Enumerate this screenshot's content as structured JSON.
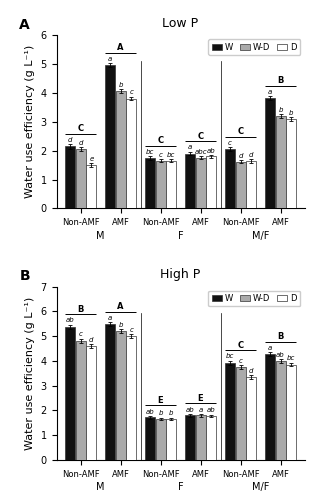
{
  "chart_data": [
    {
      "type": "bar",
      "title": "Low P",
      "panel_label": "A",
      "ylabel": "Water use efficiency (g L⁻¹)",
      "categories": [
        "Non-AMF",
        "AMF",
        "Non-AMF",
        "AMF",
        "Non-AMF",
        "AMF"
      ],
      "category_groups": [
        "M",
        "F",
        "M/F"
      ],
      "category_letters": [
        "C",
        "A",
        "C",
        "C",
        "C",
        "B"
      ],
      "ylim": [
        0,
        6
      ],
      "yticks": [
        0,
        1,
        2,
        3,
        4,
        5,
        6
      ],
      "legend": "upper right",
      "edge_color": "#333333",
      "series": [
        {
          "name": "W",
          "color": "#111111",
          "values": [
            2.15,
            4.95,
            1.75,
            1.9,
            2.05,
            3.82
          ],
          "errors": [
            0.08,
            0.07,
            0.06,
            0.06,
            0.07,
            0.07
          ],
          "letters": [
            "d",
            "a",
            "bc",
            "a",
            "c",
            "a"
          ]
        },
        {
          "name": "W-D",
          "color": "#aaaaaa",
          "values": [
            2.05,
            4.05,
            1.65,
            1.75,
            1.62,
            3.2
          ],
          "errors": [
            0.07,
            0.07,
            0.05,
            0.05,
            0.06,
            0.07
          ],
          "letters": [
            "d",
            "b",
            "c",
            "abc",
            "d",
            "b"
          ]
        },
        {
          "name": "D",
          "color": "#ffffff",
          "values": [
            1.5,
            3.8,
            1.65,
            1.8,
            1.65,
            3.08
          ],
          "errors": [
            0.06,
            0.06,
            0.05,
            0.05,
            0.06,
            0.07
          ],
          "letters": [
            "e",
            "c",
            "bc",
            "ab",
            "d",
            "b"
          ]
        }
      ]
    },
    {
      "type": "bar",
      "title": "High P",
      "panel_label": "B",
      "ylabel": "Water use efficiency (g L⁻¹)",
      "categories": [
        "Non-AMF",
        "AMF",
        "Non-AMF",
        "AMF",
        "Non-AMF",
        "AMF"
      ],
      "category_groups": [
        "M",
        "F",
        "M/F"
      ],
      "category_letters": [
        "B",
        "A",
        "E",
        "E",
        "C",
        "B"
      ],
      "ylim": [
        0,
        7
      ],
      "yticks": [
        0,
        1,
        2,
        3,
        4,
        5,
        6,
        7
      ],
      "legend": "upper right",
      "edge_color": "#333333",
      "series": [
        {
          "name": "W",
          "color": "#111111",
          "values": [
            5.38,
            5.48,
            1.72,
            1.8,
            3.92,
            4.28
          ],
          "errors": [
            0.08,
            0.07,
            0.06,
            0.06,
            0.08,
            0.08
          ],
          "letters": [
            "ab",
            "a",
            "ab",
            "ab",
            "bc",
            "a"
          ]
        },
        {
          "name": "W-D",
          "color": "#aaaaaa",
          "values": [
            4.82,
            5.2,
            1.65,
            1.8,
            3.75,
            4.0
          ],
          "errors": [
            0.08,
            0.07,
            0.05,
            0.05,
            0.08,
            0.07
          ],
          "letters": [
            "c",
            "b",
            "b",
            "a",
            "c",
            "ab"
          ]
        },
        {
          "name": "D",
          "color": "#ffffff",
          "values": [
            4.6,
            5.0,
            1.65,
            1.78,
            3.35,
            3.85
          ],
          "errors": [
            0.07,
            0.07,
            0.05,
            0.05,
            0.07,
            0.07
          ],
          "letters": [
            "d",
            "c",
            "b",
            "ab",
            "d",
            "bc"
          ]
        }
      ]
    }
  ]
}
